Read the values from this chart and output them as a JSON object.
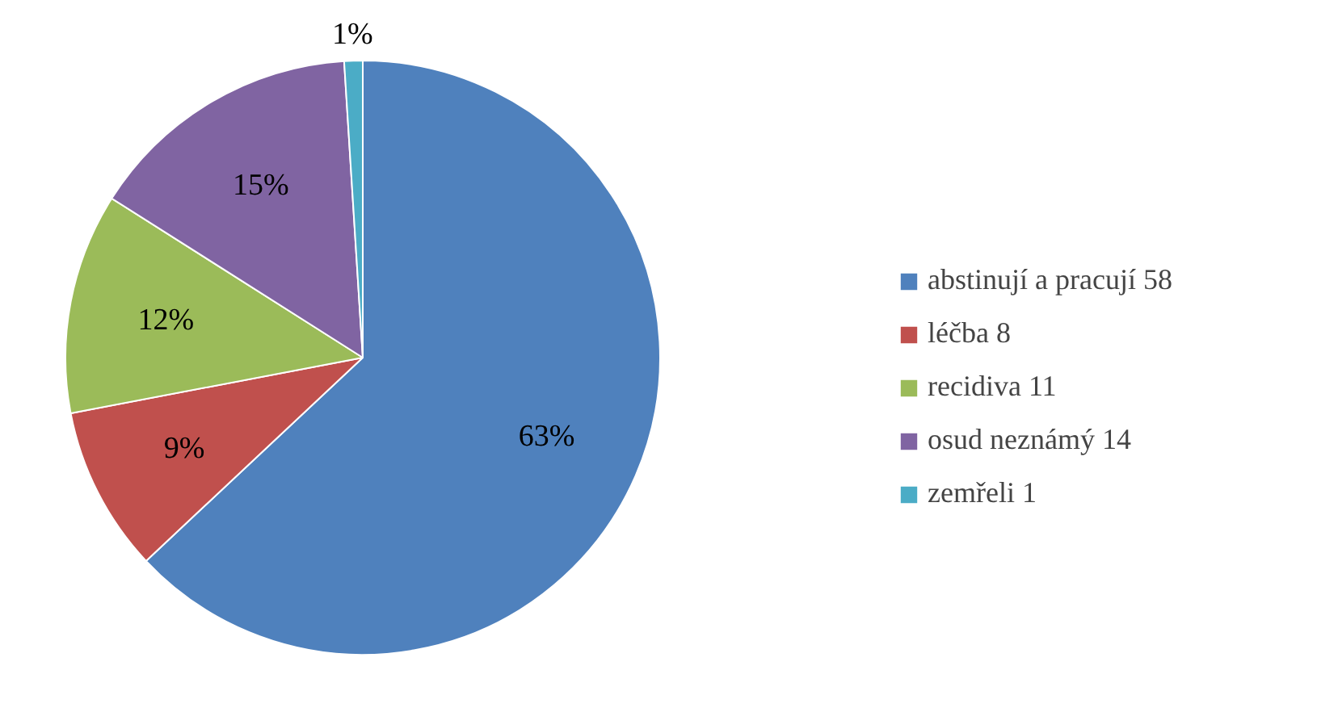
{
  "chart_data": {
    "type": "pie",
    "categories": [
      "abstinují a pracují 58",
      "léčba 8",
      "recidiva 11",
      "osud neznámý 14",
      "zemřeli 1"
    ],
    "values": [
      63,
      9,
      12,
      15,
      1
    ],
    "colors": [
      "#4f81bd",
      "#c0504d",
      "#9bbb59",
      "#8064a2",
      "#4bacc6"
    ],
    "value_labels": [
      "63%",
      "9%",
      "12%",
      "15%",
      "1%"
    ],
    "legend": "right"
  }
}
